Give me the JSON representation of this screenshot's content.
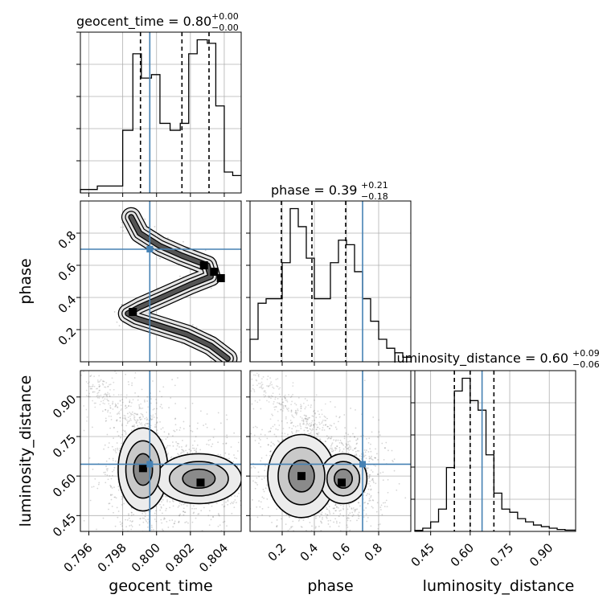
{
  "chart_data": {
    "type": "corner",
    "parameters": [
      "geocent_time",
      "phase",
      "luminosity_distance"
    ],
    "truth": {
      "geocent_time": 0.7996,
      "phase": 0.7,
      "luminosity_distance": 0.645
    },
    "marginals": [
      {
        "param": "geocent_time",
        "title": "geocent_time = 0.80",
        "title_sup": "+0.00",
        "title_sub": "−0.00",
        "xlim": [
          0.7955,
          0.805
        ],
        "bin_edges": [
          0.7955,
          0.7965,
          0.7975,
          0.798,
          0.7986,
          0.7991,
          0.7997,
          0.8002,
          0.8008,
          0.8014,
          0.8019,
          0.8024,
          0.803,
          0.8035,
          0.804,
          0.8045,
          0.805
        ],
        "counts": [
          1,
          2,
          2,
          18,
          40,
          33,
          34,
          20,
          18,
          20,
          40,
          44,
          43,
          25,
          6,
          5
        ],
        "quantiles": [
          0.79905,
          0.8015,
          0.8031
        ]
      },
      {
        "param": "phase",
        "title": "phase = 0.39",
        "title_sup": "+0.21",
        "title_sub": "−0.18",
        "xlim": [
          0.0,
          1.0
        ],
        "bin_edges": [
          0.0,
          0.05,
          0.1,
          0.15,
          0.2,
          0.25,
          0.3,
          0.35,
          0.4,
          0.45,
          0.5,
          0.55,
          0.6,
          0.65,
          0.7,
          0.75,
          0.8,
          0.85,
          0.9,
          0.95,
          1.0
        ],
        "counts": [
          5,
          13,
          14,
          14,
          22,
          34,
          30,
          23,
          14,
          14,
          22,
          27,
          26,
          20,
          14,
          9,
          5,
          3,
          2,
          1
        ],
        "quantiles": [
          0.195,
          0.385,
          0.595
        ]
      },
      {
        "param": "luminosity_distance",
        "title": "luminosity_distance = 0.60",
        "title_sup": "+0.09",
        "title_sub": "−0.06",
        "xlim": [
          0.39,
          1.0
        ],
        "bin_edges": [
          0.39,
          0.42,
          0.45,
          0.48,
          0.51,
          0.54,
          0.57,
          0.6,
          0.63,
          0.66,
          0.69,
          0.72,
          0.75,
          0.78,
          0.81,
          0.84,
          0.87,
          0.9,
          0.93,
          0.96,
          1.0
        ],
        "counts": [
          0.3,
          1,
          3,
          7,
          20,
          44,
          48,
          41,
          38,
          24,
          12,
          7,
          6,
          4,
          3,
          2,
          1.5,
          1,
          0.6,
          0.4
        ],
        "quantiles": [
          0.54,
          0.6,
          0.69
        ]
      }
    ],
    "axes": {
      "geocent_time": {
        "label": "geocent_time",
        "ticks": [
          0.796,
          0.798,
          0.8,
          0.802,
          0.804
        ],
        "tick_labels": [
          "0.796",
          "0.798",
          "0.800",
          "0.802",
          "0.804"
        ],
        "range": [
          0.7955,
          0.805
        ]
      },
      "phase": {
        "label": "phase",
        "ticks": [
          0.2,
          0.4,
          0.6,
          0.8
        ],
        "tick_labels": [
          "0.2",
          "0.4",
          "0.6",
          "0.8"
        ],
        "range": [
          0.0,
          1.0
        ]
      },
      "luminosity_distance": {
        "label": "luminosity_distance",
        "ticks": [
          0.45,
          0.6,
          0.75,
          0.9
        ],
        "tick_labels": [
          "0.45",
          "0.60",
          "0.75",
          "0.90"
        ],
        "range": [
          0.39,
          1.0
        ]
      }
    },
    "joint": [
      {
        "x": "geocent_time",
        "y": "phase",
        "ridge": [
          [
            0.8042,
            0.02
          ],
          [
            0.8032,
            0.1
          ],
          [
            0.8018,
            0.17
          ],
          [
            0.8003,
            0.22
          ],
          [
            0.7988,
            0.27
          ],
          [
            0.7983,
            0.3
          ],
          [
            0.799,
            0.34
          ],
          [
            0.8003,
            0.4
          ],
          [
            0.802,
            0.48
          ],
          [
            0.8032,
            0.53
          ],
          [
            0.803,
            0.6
          ],
          [
            0.8015,
            0.66
          ],
          [
            0.8002,
            0.72
          ],
          [
            0.799,
            0.8
          ],
          [
            0.7985,
            0.9
          ]
        ],
        "peaks": [
          [
            0.7986,
            0.31
          ],
          [
            0.8028,
            0.6
          ],
          [
            0.8034,
            0.56
          ],
          [
            0.8038,
            0.52
          ]
        ]
      },
      {
        "x": "geocent_time",
        "y": "luminosity_distance",
        "blobs": [
          {
            "cx": 0.7992,
            "cy": 0.625,
            "sx": 0.0007,
            "sy": 0.075
          },
          {
            "cx": 0.8025,
            "cy": 0.59,
            "sx": 0.0012,
            "sy": 0.045
          }
        ],
        "peaks": [
          [
            0.8026,
            0.575
          ],
          [
            0.7992,
            0.63
          ]
        ]
      },
      {
        "x": "phase",
        "y": "luminosity_distance",
        "blobs": [
          {
            "cx": 0.32,
            "cy": 0.6,
            "sx": 0.1,
            "sy": 0.075
          },
          {
            "cx": 0.58,
            "cy": 0.59,
            "sx": 0.07,
            "sy": 0.045
          }
        ],
        "peaks": [
          [
            0.57,
            0.575
          ],
          [
            0.32,
            0.6
          ]
        ]
      }
    ],
    "colors": {
      "truth": "#4682b4",
      "hist": "#000000",
      "grid": "#b0b0b0",
      "samples": "#444444"
    },
    "grid": true
  }
}
